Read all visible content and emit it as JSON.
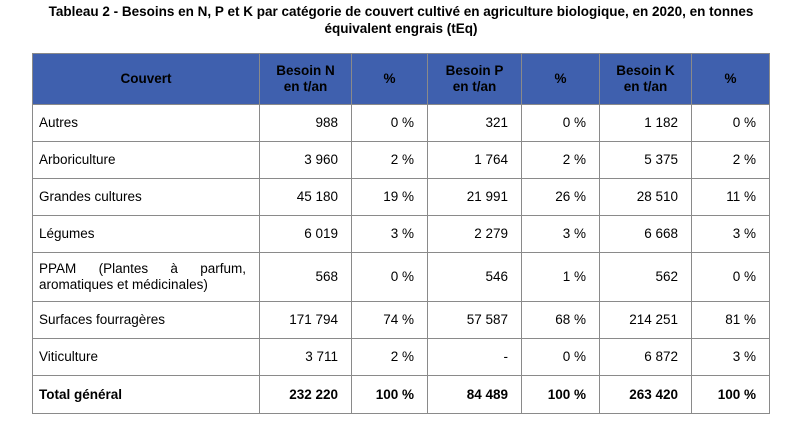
{
  "caption": {
    "line1": "Tableau 2 - Besoins en N, P et K par catégorie de couvert cultivé en agriculture biologique, en 2020, en tonnes",
    "line2": "équivalent engrais (tEq)"
  },
  "header": {
    "couvert": "Couvert",
    "besoin_n_1": "Besoin N",
    "besoin_n_2": "en t/an",
    "pct_n": "%",
    "besoin_p_1": "Besoin P",
    "besoin_p_2": "en t/an",
    "pct_p": "%",
    "besoin_k_1": "Besoin K",
    "besoin_k_2": "en t/an",
    "pct_k": "%"
  },
  "rows": [
    {
      "couvert": "Autres",
      "n": "988",
      "n_pct": "0 %",
      "p": "321",
      "p_pct": "0 %",
      "k": "1 182",
      "k_pct": "0 %"
    },
    {
      "couvert": "Arboriculture",
      "n": "3 960",
      "n_pct": "2 %",
      "p": "1 764",
      "p_pct": "2 %",
      "k": "5 375",
      "k_pct": "2 %"
    },
    {
      "couvert": "Grandes cultures",
      "n": "45 180",
      "n_pct": "19 %",
      "p": "21 991",
      "p_pct": "26 %",
      "k": "28 510",
      "k_pct": "11 %"
    },
    {
      "couvert": "Légumes",
      "n": "6 019",
      "n_pct": "3 %",
      "p": "2 279",
      "p_pct": "3 %",
      "k": "6 668",
      "k_pct": "3 %"
    },
    {
      "couvert": "PPAM (Plantes à parfum, aromatiques et médicinales)",
      "n": "568",
      "n_pct": "0 %",
      "p": "546",
      "p_pct": "1 %",
      "k": "562",
      "k_pct": "0 %"
    },
    {
      "couvert": "Surfaces fourragères",
      "n": "171 794",
      "n_pct": "74 %",
      "p": "57 587",
      "p_pct": "68 %",
      "k": "214 251",
      "k_pct": "81 %"
    },
    {
      "couvert": "Viticulture",
      "n": "3 711",
      "n_pct": "2 %",
      "p": "-",
      "p_pct": "0 %",
      "k": "6 872",
      "k_pct": "3 %"
    }
  ],
  "total": {
    "couvert": "Total général",
    "n": "232 220",
    "n_pct": "100 %",
    "p": "84 489",
    "p_pct": "100 %",
    "k": "263 420",
    "k_pct": "100 %"
  },
  "colors": {
    "header_background": "#3f60ae",
    "border": "#8a8a8a"
  }
}
